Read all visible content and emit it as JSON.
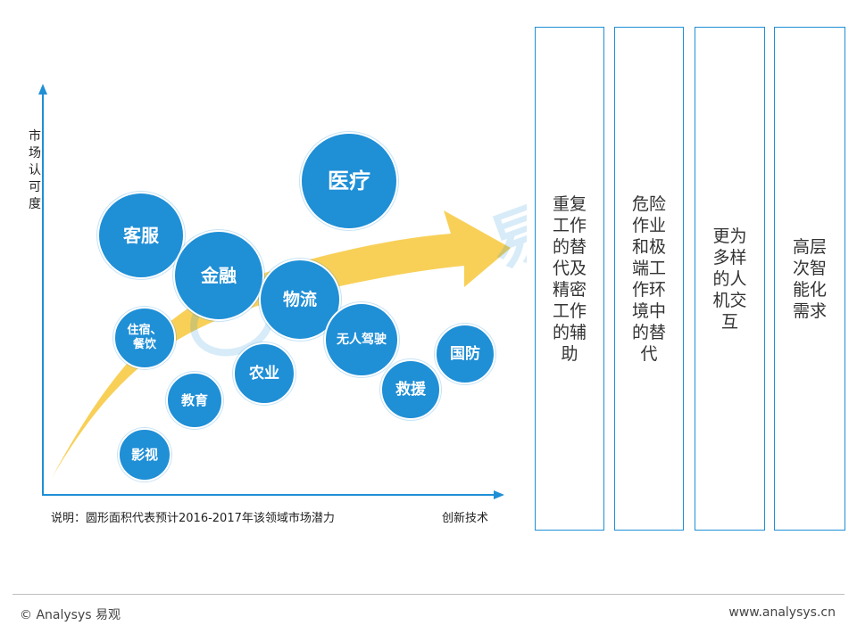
{
  "diagram": {
    "y_axis_label": "市场认可度",
    "x_axis_label": "创新技术",
    "note": "说明：圆形面积代表预计2016-2017年该领域市场潜力",
    "bubbles": [
      {
        "label": "医疗"
      },
      {
        "label": "客服"
      },
      {
        "label": "金融"
      },
      {
        "label": "物流"
      },
      {
        "label": "住宿、餐饮"
      },
      {
        "label": "无人驾驶"
      },
      {
        "label": "国防"
      },
      {
        "label": "农业"
      },
      {
        "label": "教育"
      },
      {
        "label": "救援"
      },
      {
        "label": "影视"
      }
    ],
    "arrow_color": "#f8cd4f",
    "bubble_color": "#1f8fd6"
  },
  "panels": [
    {
      "text": "重复工作的替代及精密工作的辅助"
    },
    {
      "text": "危险作业和极端工作环境中的替代"
    },
    {
      "text": "更为多样的人机交互"
    },
    {
      "text": "高层次智能化需求"
    }
  ],
  "watermark": {
    "text": "易观"
  },
  "footer": {
    "left": "© Analysys 易观",
    "right": "www.analysys.cn"
  }
}
